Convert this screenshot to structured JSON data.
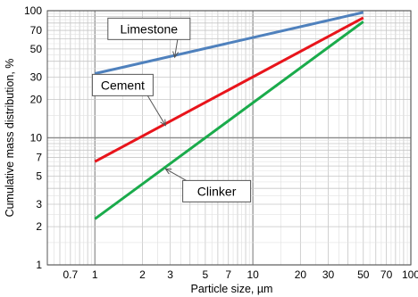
{
  "chart_data": {
    "type": "line",
    "xlabel": "Particle size, µm",
    "ylabel": "Cumulative mass distribution, %",
    "x_scale": "log",
    "y_scale": "log",
    "xlim": [
      0.5,
      100
    ],
    "ylim": [
      1,
      100
    ],
    "grid": true,
    "x_ticks": [
      {
        "v": 0.7,
        "label": "0.7"
      },
      {
        "v": 1,
        "label": "1"
      },
      {
        "v": 2,
        "label": "2"
      },
      {
        "v": 3,
        "label": "3"
      },
      {
        "v": 5,
        "label": "5"
      },
      {
        "v": 7,
        "label": "7"
      },
      {
        "v": 10,
        "label": "10"
      },
      {
        "v": 20,
        "label": "20"
      },
      {
        "v": 30,
        "label": "30"
      },
      {
        "v": 50,
        "label": "50"
      },
      {
        "v": 70,
        "label": "70"
      },
      {
        "v": 100,
        "label": "100"
      }
    ],
    "y_ticks": [
      {
        "v": 1,
        "label": "1"
      },
      {
        "v": 2,
        "label": "2"
      },
      {
        "v": 3,
        "label": "3"
      },
      {
        "v": 5,
        "label": "5"
      },
      {
        "v": 7,
        "label": "7"
      },
      {
        "v": 10,
        "label": "10"
      },
      {
        "v": 20,
        "label": "20"
      },
      {
        "v": 30,
        "label": "30"
      },
      {
        "v": 50,
        "label": "50"
      },
      {
        "v": 70,
        "label": "70"
      },
      {
        "v": 100,
        "label": "100"
      }
    ],
    "series": [
      {
        "name": "Limestone",
        "color": "#4F81BD",
        "x": [
          1,
          50
        ],
        "y": [
          32,
          97
        ],
        "label_pos": [
          2.2,
          72
        ],
        "arrow_to": [
          3.2,
          43
        ]
      },
      {
        "name": "Cement",
        "color": "#E8141B",
        "x": [
          1,
          50
        ],
        "y": [
          6.5,
          88
        ],
        "label_pos": [
          1.5,
          26
        ],
        "arrow_to": [
          2.8,
          12.5
        ]
      },
      {
        "name": "Clinker",
        "color": "#1AAB4B",
        "x": [
          1,
          50
        ],
        "y": [
          2.3,
          82
        ],
        "label_pos": [
          5.9,
          3.8
        ],
        "arrow_to": [
          2.8,
          5.7
        ]
      }
    ]
  }
}
